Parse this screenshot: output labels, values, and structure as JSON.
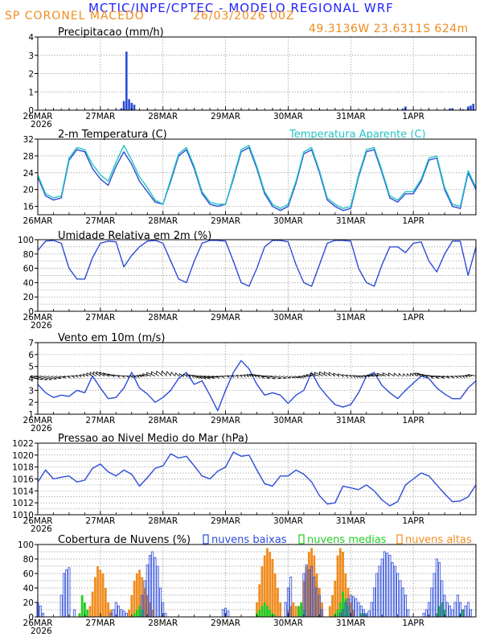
{
  "header": {
    "title": "MCTIC/INPE/CPTEC - MODELO REGIONAL WRF",
    "station": "SP CORONEL MACEDO",
    "date": "26/03/2026 00Z",
    "coords": "49.3136W 23.6311S 624m"
  },
  "colors": {
    "blue": "#2c4bd8",
    "cyan": "#25c4c4",
    "green": "#22cc22",
    "orange": "#f08c1e",
    "black": "#000000"
  },
  "x_axis": {
    "labels": [
      "26MAR",
      "27MAR",
      "28MAR",
      "29MAR",
      "30MAR",
      "31MAR",
      "1APR"
    ],
    "year": "2026",
    "range_hours": [
      0,
      168
    ]
  },
  "chart_data": [
    {
      "id": "precip",
      "type": "bar",
      "title": "Precipitacao (mm/h)",
      "ylim": [
        0,
        4
      ],
      "yticks": [
        0,
        1,
        2,
        3,
        4
      ],
      "x_unit": "hours since 26MAR 00Z",
      "x": [
        32,
        33,
        34,
        35,
        36,
        37,
        134,
        140,
        141,
        158,
        159,
        163,
        165,
        166,
        167
      ],
      "values": [
        0.1,
        0.5,
        3.2,
        0.6,
        0.4,
        0.3,
        0.03,
        0.1,
        0.2,
        0.1,
        0.1,
        0.05,
        0.2,
        0.25,
        0.35
      ]
    },
    {
      "id": "temperature",
      "type": "line",
      "title": "2-m Temperatura (C)",
      "legend": "Temperatura Aparente (C)",
      "ylim": [
        14,
        32
      ],
      "yticks": [
        16,
        20,
        24,
        28,
        32
      ],
      "x_unit": "hours since 26MAR 00Z",
      "series": [
        {
          "name": "2-m Temperatura (C)",
          "color": "blue",
          "x": [
            0,
            3,
            6,
            9,
            12,
            15,
            18,
            21,
            24,
            27,
            30,
            33,
            36,
            39,
            42,
            45,
            48,
            51,
            54,
            57,
            60,
            63,
            66,
            69,
            72,
            75,
            78,
            81,
            84,
            87,
            90,
            93,
            96,
            99,
            102,
            105,
            108,
            111,
            114,
            117,
            120,
            123,
            126,
            129,
            132,
            135,
            138,
            141,
            144,
            147,
            150,
            153,
            156,
            159,
            162,
            165,
            168
          ],
          "values": [
            23,
            18.5,
            17.5,
            18,
            27,
            29.5,
            29,
            25,
            22.5,
            21,
            25.5,
            29,
            26,
            22,
            19.5,
            17,
            16.5,
            22,
            28,
            29.5,
            25,
            19,
            16.5,
            16,
            16.5,
            22.5,
            29,
            30,
            25,
            19,
            16,
            15,
            16,
            21.5,
            28.5,
            29.5,
            24,
            17.5,
            16,
            15,
            15.5,
            23,
            29,
            29.5,
            24,
            18,
            17,
            19,
            19,
            22,
            27,
            27.5,
            20,
            16,
            15.5,
            24,
            20
          ]
        },
        {
          "name": "Temperatura Aparente (C)",
          "color": "cyan",
          "x": [
            0,
            3,
            6,
            9,
            12,
            15,
            18,
            21,
            24,
            27,
            30,
            33,
            36,
            39,
            42,
            45,
            48,
            51,
            54,
            57,
            60,
            63,
            66,
            69,
            72,
            75,
            78,
            81,
            84,
            87,
            90,
            93,
            96,
            99,
            102,
            105,
            108,
            111,
            114,
            117,
            120,
            123,
            126,
            129,
            132,
            135,
            138,
            141,
            144,
            147,
            150,
            153,
            156,
            159,
            162,
            165,
            168
          ],
          "values": [
            23.5,
            19,
            18,
            18.5,
            27.5,
            30,
            29.5,
            26,
            23.5,
            22,
            26.5,
            30.5,
            27,
            23,
            20.5,
            17.5,
            16.5,
            22.5,
            28.5,
            30,
            25.5,
            19.5,
            17,
            16.5,
            16.5,
            23,
            29.5,
            30.5,
            25.5,
            19.5,
            16.5,
            15.5,
            16.5,
            22,
            29,
            30,
            24.5,
            18,
            16.5,
            15.5,
            16,
            23.5,
            29.5,
            30,
            24.5,
            18.5,
            17.5,
            19.5,
            19.5,
            22.5,
            27.5,
            28,
            20.5,
            16.5,
            16,
            24.5,
            20.5
          ]
        }
      ]
    },
    {
      "id": "humidity",
      "type": "line",
      "title": "Umidade Relativa em 2m (%)",
      "ylim": [
        0,
        100
      ],
      "yticks": [
        0,
        20,
        40,
        60,
        80,
        100
      ],
      "x_unit": "hours since 26MAR 00Z",
      "series": [
        {
          "name": "Umidade Relativa em 2m (%)",
          "color": "blue",
          "x": [
            0,
            3,
            6,
            9,
            12,
            15,
            18,
            21,
            24,
            27,
            30,
            33,
            36,
            39,
            42,
            45,
            48,
            51,
            54,
            57,
            60,
            63,
            66,
            69,
            72,
            75,
            78,
            81,
            84,
            87,
            90,
            93,
            96,
            99,
            102,
            105,
            108,
            111,
            114,
            117,
            120,
            123,
            126,
            129,
            132,
            135,
            138,
            141,
            144,
            147,
            150,
            153,
            156,
            159,
            162,
            165,
            168
          ],
          "values": [
            85,
            98,
            99,
            95,
            60,
            45,
            45,
            75,
            95,
            98,
            97,
            62,
            78,
            90,
            98,
            99,
            95,
            70,
            45,
            40,
            70,
            95,
            99,
            99,
            98,
            70,
            40,
            35,
            60,
            90,
            99,
            99,
            97,
            65,
            40,
            35,
            65,
            95,
            99,
            99,
            98,
            60,
            40,
            35,
            65,
            90,
            90,
            82,
            95,
            97,
            70,
            55,
            80,
            98,
            98,
            50,
            90
          ]
        }
      ]
    },
    {
      "id": "wind",
      "type": "line",
      "title": "Vento em 10m (m/s)",
      "ylim": [
        1,
        7
      ],
      "yticks": [
        1,
        2,
        3,
        4,
        5,
        6,
        7
      ],
      "x_unit": "hours since 26MAR 00Z",
      "series": [
        {
          "name": "Vento em 10m (m/s)",
          "color": "blue",
          "x": [
            0,
            3,
            6,
            9,
            12,
            15,
            18,
            21,
            24,
            27,
            30,
            33,
            36,
            39,
            42,
            45,
            48,
            51,
            54,
            57,
            60,
            63,
            66,
            69,
            72,
            75,
            78,
            81,
            84,
            87,
            90,
            93,
            96,
            99,
            102,
            105,
            108,
            111,
            114,
            117,
            120,
            123,
            126,
            129,
            132,
            135,
            138,
            141,
            144,
            147,
            150,
            153,
            156,
            159,
            162,
            165,
            168
          ],
          "values": [
            3.5,
            2.8,
            2.4,
            2.6,
            2.5,
            3.0,
            2.8,
            4.2,
            3.2,
            2.3,
            2.4,
            3.2,
            4.5,
            3.2,
            2.7,
            2.0,
            2.4,
            3.0,
            4.0,
            4.5,
            3.5,
            3.8,
            2.6,
            1.3,
            3.0,
            4.5,
            5.5,
            4.8,
            3.5,
            2.6,
            2.8,
            2.6,
            1.9,
            2.6,
            3.0,
            4.5,
            3.3,
            2.5,
            1.8,
            1.6,
            1.8,
            2.8,
            4.2,
            4.5,
            3.4,
            2.8,
            2.3,
            3.0,
            3.6,
            4.2,
            4.0,
            3.2,
            2.7,
            2.3,
            2.3,
            3.2,
            3.8
          ]
        }
      ]
    },
    {
      "id": "pressure",
      "type": "line",
      "title": "Pressao ao Nivel Medio do Mar (hPa)",
      "ylim": [
        1010,
        1022
      ],
      "yticks": [
        1010,
        1012,
        1014,
        1016,
        1018,
        1020,
        1022
      ],
      "x_unit": "hours since 26MAR 00Z",
      "series": [
        {
          "name": "Pressao ao Nivel Medio do Mar (hPa)",
          "color": "blue",
          "x": [
            0,
            3,
            6,
            9,
            12,
            15,
            18,
            21,
            24,
            27,
            30,
            33,
            36,
            39,
            42,
            45,
            48,
            51,
            54,
            57,
            60,
            63,
            66,
            69,
            72,
            75,
            78,
            81,
            84,
            87,
            90,
            93,
            96,
            99,
            102,
            105,
            108,
            111,
            114,
            117,
            120,
            123,
            126,
            129,
            132,
            135,
            138,
            141,
            144,
            147,
            150,
            153,
            156,
            159,
            162,
            165,
            168
          ],
          "values": [
            1015.5,
            1017.5,
            1016.0,
            1016.3,
            1016.5,
            1015.5,
            1015.8,
            1017.8,
            1018.5,
            1017.2,
            1016.5,
            1017.5,
            1016.8,
            1014.8,
            1016.2,
            1017.8,
            1018.2,
            1020.2,
            1019.5,
            1019.8,
            1018.2,
            1016.5,
            1016.0,
            1017.3,
            1018.0,
            1020.5,
            1019.8,
            1020.0,
            1017.5,
            1015.2,
            1014.8,
            1016.5,
            1016.5,
            1017.5,
            1016.8,
            1015.5,
            1013.2,
            1011.8,
            1012.0,
            1014.8,
            1014.5,
            1014.2,
            1015.0,
            1014.0,
            1012.5,
            1011.5,
            1012.2,
            1015.0,
            1016.0,
            1017.0,
            1016.5,
            1015.0,
            1013.5,
            1012.2,
            1012.3,
            1013.0,
            1015.0
          ]
        }
      ]
    },
    {
      "id": "clouds",
      "type": "bar",
      "title": "Cobertura de Nuvens (%)",
      "ylim": [
        0,
        100
      ],
      "yticks": [
        0,
        20,
        40,
        60,
        80,
        100
      ],
      "x_unit": "hours since 26MAR 00Z",
      "series": [
        {
          "name": "nuvens baixas",
          "color": "blue",
          "x": [
            0,
            1,
            2,
            9,
            10,
            11,
            12,
            14,
            28,
            29,
            30,
            31,
            32,
            33,
            34,
            40,
            41,
            42,
            43,
            44,
            45,
            46,
            47,
            48,
            49,
            71,
            72,
            73,
            95,
            96,
            97,
            102,
            103,
            104,
            105,
            106,
            107,
            108,
            109,
            116,
            117,
            118,
            119,
            120,
            121,
            122,
            123,
            124,
            125,
            126,
            127,
            128,
            129,
            130,
            131,
            132,
            133,
            134,
            135,
            136,
            137,
            138,
            139,
            140,
            141,
            142,
            148,
            149,
            150,
            151,
            152,
            153,
            154,
            155,
            156,
            157,
            158,
            159,
            160,
            161,
            162,
            163,
            164,
            165,
            166
          ],
          "values": [
            20,
            15,
            5,
            30,
            60,
            65,
            68,
            10,
            5,
            10,
            20,
            15,
            10,
            8,
            5,
            30,
            50,
            72,
            85,
            90,
            82,
            70,
            40,
            20,
            5,
            10,
            12,
            8,
            20,
            40,
            55,
            60,
            72,
            65,
            70,
            55,
            40,
            30,
            10,
            5,
            10,
            20,
            25,
            30,
            28,
            25,
            20,
            15,
            10,
            5,
            8,
            20,
            40,
            60,
            70,
            80,
            90,
            88,
            85,
            75,
            70,
            60,
            50,
            40,
            30,
            10,
            5,
            10,
            20,
            40,
            60,
            80,
            75,
            50,
            30,
            20,
            15,
            10,
            20,
            30,
            20,
            10,
            15,
            20,
            10
          ]
        },
        {
          "name": "nuvens medias",
          "color": "green",
          "x": [
            16,
            17,
            18,
            19,
            37,
            38,
            39,
            40,
            84,
            85,
            86,
            87,
            88,
            89,
            90,
            91,
            100,
            101,
            102,
            114,
            115,
            116,
            117,
            118,
            119,
            124,
            125,
            153,
            154,
            155,
            156,
            162,
            163
          ],
          "values": [
            5,
            30,
            20,
            10,
            5,
            10,
            15,
            10,
            5,
            10,
            15,
            20,
            15,
            10,
            5,
            3,
            15,
            20,
            10,
            5,
            10,
            20,
            35,
            25,
            15,
            5,
            5,
            5,
            15,
            20,
            10,
            5,
            10
          ]
        },
        {
          "name": "nuvens altas",
          "color": "orange",
          "x": [
            20,
            21,
            22,
            23,
            24,
            25,
            26,
            27,
            28,
            35,
            36,
            37,
            38,
            39,
            40,
            41,
            42,
            43,
            44,
            84,
            85,
            86,
            87,
            88,
            89,
            90,
            91,
            92,
            93,
            96,
            97,
            98,
            99,
            100,
            101,
            102,
            103,
            104,
            105,
            106,
            107,
            108,
            109,
            112,
            113,
            114,
            115,
            116,
            117,
            118,
            119,
            120,
            121
          ],
          "values": [
            15,
            35,
            55,
            70,
            65,
            60,
            40,
            20,
            10,
            10,
            30,
            50,
            60,
            65,
            55,
            40,
            30,
            20,
            10,
            20,
            45,
            70,
            85,
            95,
            90,
            80,
            60,
            40,
            20,
            10,
            15,
            20,
            15,
            10,
            15,
            50,
            70,
            90,
            95,
            85,
            60,
            40,
            20,
            15,
            30,
            50,
            85,
            95,
            90,
            60,
            40,
            20,
            10
          ]
        }
      ]
    }
  ]
}
